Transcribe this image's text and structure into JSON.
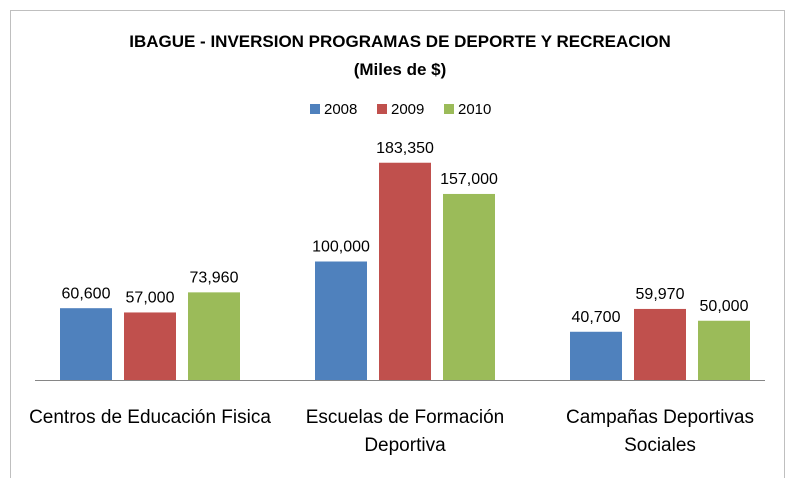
{
  "chart_data": {
    "type": "bar",
    "title": "IBAGUE - INVERSION PROGRAMAS DE DEPORTE Y RECREACION (Miles de $)",
    "categories": [
      "Centros de Educación Fisica",
      "Escuelas de Formación Deportiva",
      "Campañas Deportivas Sociales"
    ],
    "series": [
      {
        "name": "2008",
        "color": "#4f81bd",
        "values": [
          60600,
          100000,
          40700
        ],
        "value_labels": [
          "60,600",
          "100,000",
          "40,700"
        ]
      },
      {
        "name": "2009",
        "color": "#c0504d",
        "values": [
          57000,
          183350,
          59970
        ],
        "value_labels": [
          "57,000",
          "183,350",
          "59,970"
        ]
      },
      {
        "name": "2010",
        "color": "#9bbb59",
        "values": [
          73960,
          157000,
          50000
        ],
        "value_labels": [
          "73,960",
          "157,000",
          "50,000"
        ]
      }
    ],
    "ylim": [
      0,
      200000
    ],
    "legend": "top"
  }
}
